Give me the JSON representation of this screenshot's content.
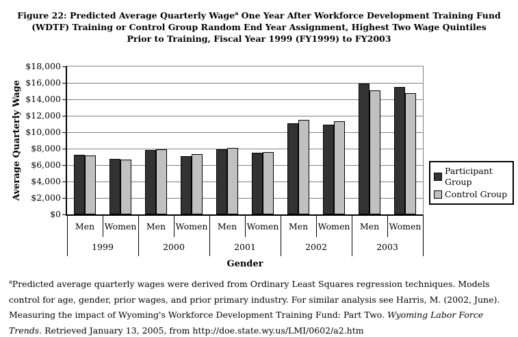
{
  "title": {
    "line1_pre": "Figure 22: Predicted Average Quarterly Wage",
    "line1_sup": "a",
    "line1_post": " One Year After Workforce Development Training Fund",
    "line2": "(WDTF) Training or Control Group Random End Year Assignment, Highest Two Wage Quintiles",
    "line3": "Prior to Training, Fiscal Year 1999 (FY1999) to FY2003"
  },
  "chart_data": {
    "type": "bar",
    "title": "Figure 22: Predicted Average Quarterly Wage One Year After Workforce Development Training Fund (WDTF) Training or Control Group Random End Year Assignment, Highest Two Wage Quintiles Prior to Training, Fiscal Year 1999 (FY1999) to FY2003",
    "xlabel": "Gender",
    "ylabel": "Average Quarterly Wage",
    "ylim": [
      0,
      18000
    ],
    "ytick_step": 2000,
    "ytick_labels": [
      "$0",
      "$2,000",
      "$4,000",
      "$6,000",
      "$8,000",
      "$10,000",
      "$12,000",
      "$14,000",
      "$16,000",
      "$18,000"
    ],
    "grid": true,
    "legend_position": "right",
    "categories": [
      "Men",
      "Women",
      "Men",
      "Women",
      "Men",
      "Women",
      "Men",
      "Women",
      "Men",
      "Women"
    ],
    "year_groups": [
      "1999",
      "2000",
      "2001",
      "2002",
      "2003"
    ],
    "series": [
      {
        "name": "Participant Group",
        "color": "#333333",
        "values": [
          7250,
          6750,
          7800,
          7100,
          7950,
          7500,
          11100,
          10950,
          15900,
          15500
        ]
      },
      {
        "name": "Control Group",
        "color": "#c0c0c0",
        "values": [
          7150,
          6650,
          7950,
          7300,
          8050,
          7600,
          11500,
          11350,
          15100,
          14750
        ]
      }
    ]
  },
  "colors": {
    "gridline": "#808080",
    "axis": "#000000",
    "participant": "#333333",
    "control": "#c0c0c0"
  },
  "footnote": {
    "sup": "a",
    "part1": "Predicted average quarterly wages were derived from Ordinary Least Squares regression techniques. Models control for age, gender, prior wages, and prior primary industry. For similar analysis see Harris, M. (2002, June). Measuring the impact of Wyoming's Workforce Development Training Fund: Part Two. ",
    "italic": "Wyoming Labor Force Trends.",
    "part2": " Retrieved January 13, 2005, from http://doe.state.wy.us/LMI/0602/a2.htm"
  }
}
